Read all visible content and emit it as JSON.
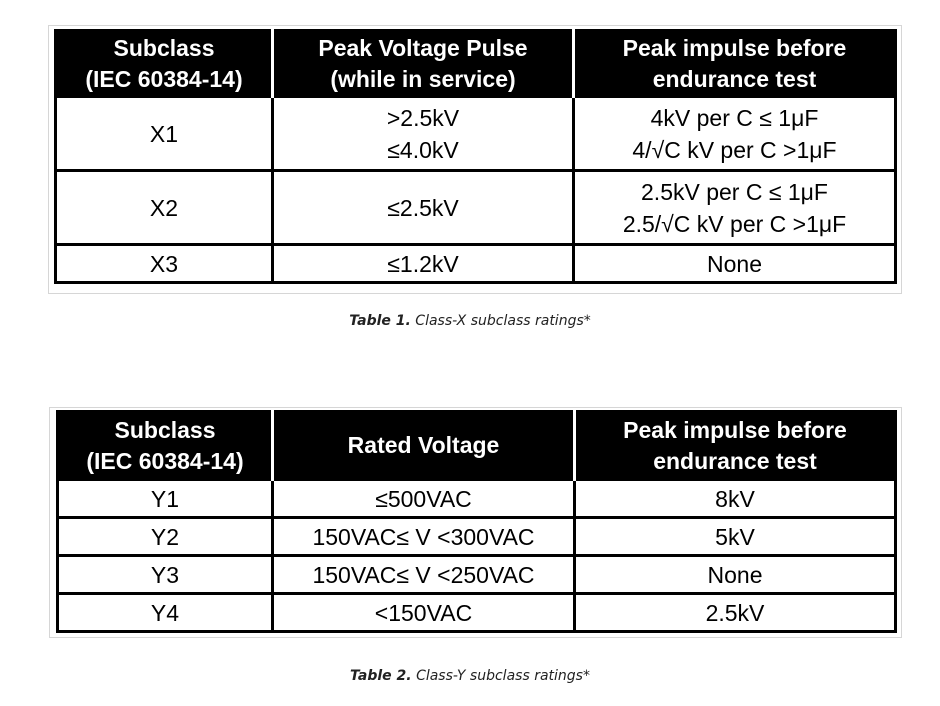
{
  "table1": {
    "headers": [
      [
        "Subclass",
        "(IEC 60384-14)"
      ],
      [
        "Peak Voltage Pulse",
        "(while in service)"
      ],
      [
        "Peak impulse before",
        "endurance test"
      ]
    ],
    "rows": [
      {
        "subclass": "X1",
        "voltage": [
          ">2.5kV",
          "≤4.0kV"
        ],
        "impulse": [
          "4kV per C ≤ 1μF",
          "4/√C kV per C >1μF"
        ]
      },
      {
        "subclass": "X2",
        "voltage": [
          "≤2.5kV"
        ],
        "impulse": [
          "2.5kV per C ≤ 1μF",
          "2.5/√C kV per C >1μF"
        ]
      },
      {
        "subclass": "X3",
        "voltage": [
          "≤1.2kV"
        ],
        "impulse": [
          "None"
        ]
      }
    ],
    "caption_label": "Table 1.",
    "caption_text": "Class-X subclass ratings*"
  },
  "table2": {
    "headers": [
      [
        "Subclass",
        "(IEC 60384-14)"
      ],
      [
        "Rated Voltage"
      ],
      [
        "Peak impulse before",
        "endurance test"
      ]
    ],
    "rows": [
      {
        "subclass": "Y1",
        "voltage": "≤500VAC",
        "impulse": "8kV"
      },
      {
        "subclass": "Y2",
        "voltage": "150VAC≤ V <300VAC",
        "impulse": "5kV"
      },
      {
        "subclass": "Y3",
        "voltage": "150VAC≤ V <250VAC",
        "impulse": "None"
      },
      {
        "subclass": "Y4",
        "voltage": "<150VAC",
        "impulse": "2.5kV"
      }
    ],
    "caption_label": "Table 2.",
    "caption_text": "Class-Y subclass ratings*"
  }
}
